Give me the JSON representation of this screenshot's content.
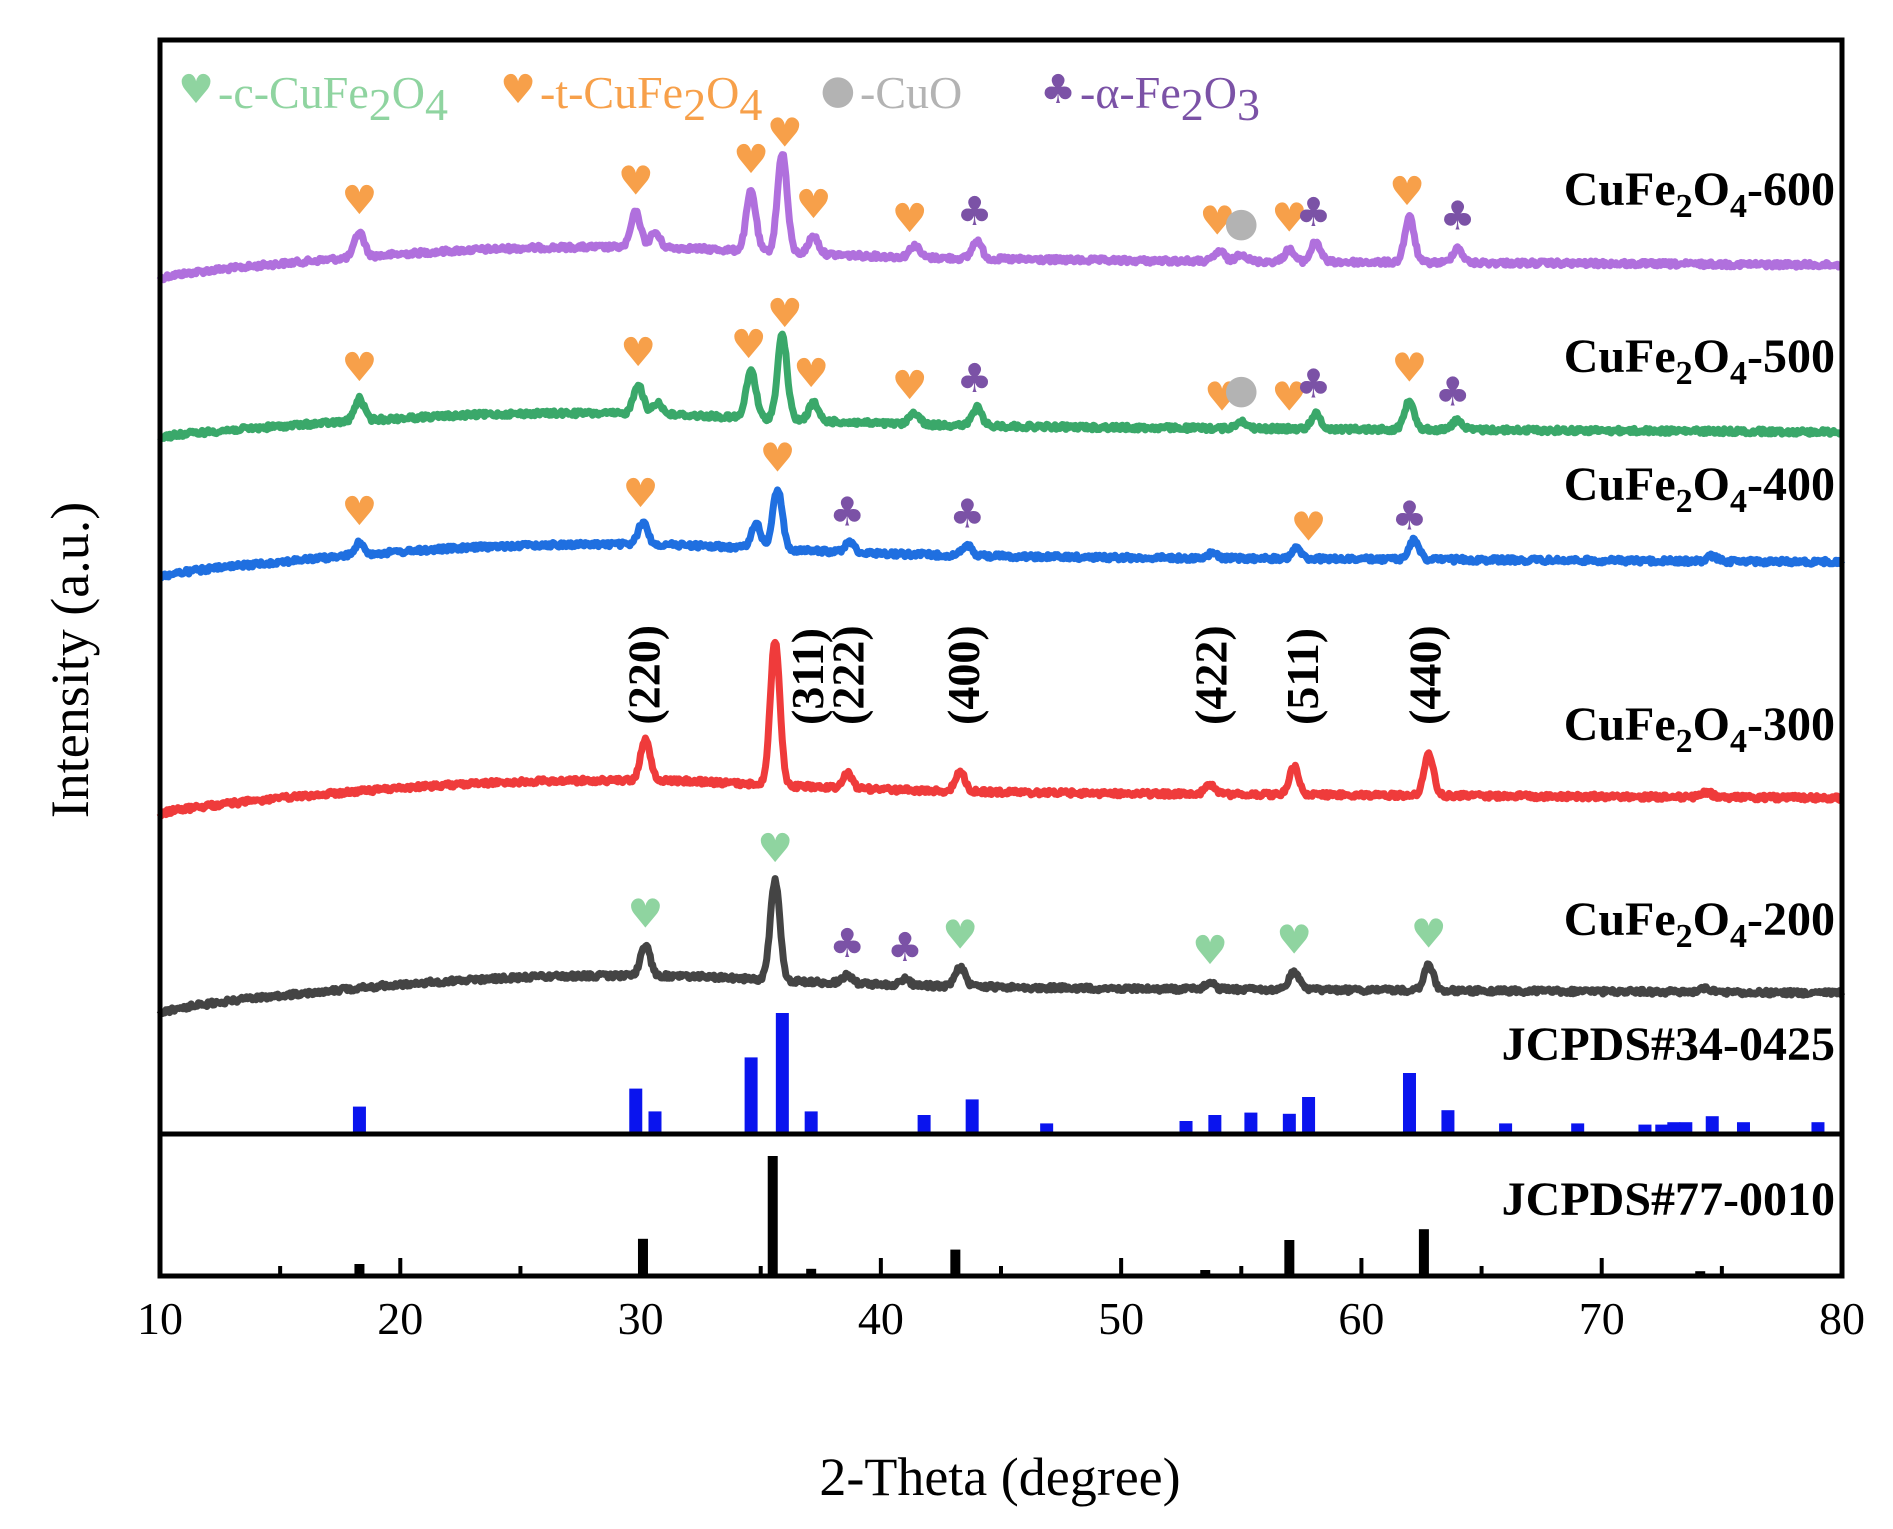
{
  "chart_data": {
    "type": "line",
    "xlabel": "2-Theta (degree)",
    "ylabel": "Intensity (a.u.)",
    "xlim": [
      10,
      80
    ],
    "x_ticks": [
      "10",
      "20",
      "30",
      "40",
      "50",
      "60",
      "70",
      "80"
    ],
    "legend": [
      {
        "symbol": "♥",
        "prefix": "-c-CuFe",
        "sub1": "2",
        "mid": "O",
        "sub2": "4",
        "color": "#8fd4a0"
      },
      {
        "symbol": "♥",
        "prefix": "-t-CuFe",
        "sub1": "2",
        "mid": "O",
        "sub2": "4",
        "color": "#f7a04a"
      },
      {
        "symbol": "●",
        "prefix": "-CuO",
        "sub1": "",
        "mid": "",
        "sub2": "",
        "color": "#b3b3b3"
      },
      {
        "symbol": "♣",
        "prefix": "-α-Fe",
        "sub1": "2",
        "mid": "O",
        "sub2": "3",
        "color": "#7b52a6"
      }
    ],
    "series": [
      {
        "name": "CuFe2O4-600",
        "label_main": "CuFe",
        "label_sub1": "2",
        "label_mid": "O",
        "label_sub2": "4",
        "label_suffix": "-600",
        "color": "#b070dd",
        "peaks": [
          {
            "x": 18.3,
            "h": 0.25
          },
          {
            "x": 29.8,
            "h": 0.35
          },
          {
            "x": 30.6,
            "h": 0.15
          },
          {
            "x": 34.6,
            "h": 0.6
          },
          {
            "x": 35.9,
            "h": 1.0
          },
          {
            "x": 37.2,
            "h": 0.18
          },
          {
            "x": 41.4,
            "h": 0.12
          },
          {
            "x": 44.0,
            "h": 0.18
          },
          {
            "x": 54.1,
            "h": 0.1
          },
          {
            "x": 55.0,
            "h": 0.08
          },
          {
            "x": 57.0,
            "h": 0.12
          },
          {
            "x": 58.1,
            "h": 0.2
          },
          {
            "x": 62.0,
            "h": 0.45
          },
          {
            "x": 64.0,
            "h": 0.15
          }
        ],
        "markers": [
          {
            "x": 18.3,
            "sym": "♥",
            "color": "#f7a04a"
          },
          {
            "x": 29.8,
            "sym": "♥",
            "color": "#f7a04a"
          },
          {
            "x": 34.6,
            "sym": "♥",
            "color": "#f7a04a"
          },
          {
            "x": 36.0,
            "sym": "♥",
            "color": "#f7a04a"
          },
          {
            "x": 37.2,
            "sym": "♥",
            "color": "#f7a04a"
          },
          {
            "x": 41.2,
            "sym": "♥",
            "color": "#f7a04a"
          },
          {
            "x": 43.9,
            "sym": "♣",
            "color": "#7b52a6"
          },
          {
            "x": 54.0,
            "sym": "♥",
            "color": "#f7a04a"
          },
          {
            "x": 55.0,
            "sym": "●",
            "color": "#b3b3b3"
          },
          {
            "x": 57.0,
            "sym": "♥",
            "color": "#f7a04a"
          },
          {
            "x": 58.0,
            "sym": "♣",
            "color": "#7b52a6"
          },
          {
            "x": 61.9,
            "sym": "♥",
            "color": "#f7a04a"
          },
          {
            "x": 64.0,
            "sym": "♣",
            "color": "#7b52a6"
          }
        ]
      },
      {
        "name": "CuFe2O4-500",
        "label_main": "CuFe",
        "label_sub1": "2",
        "label_mid": "O",
        "label_sub2": "4",
        "label_suffix": "-500",
        "color": "#3aa86a",
        "peaks": [
          {
            "x": 18.3,
            "h": 0.22
          },
          {
            "x": 29.9,
            "h": 0.3
          },
          {
            "x": 30.7,
            "h": 0.12
          },
          {
            "x": 34.6,
            "h": 0.48
          },
          {
            "x": 35.9,
            "h": 0.85
          },
          {
            "x": 37.2,
            "h": 0.18
          },
          {
            "x": 41.4,
            "h": 0.12
          },
          {
            "x": 44.0,
            "h": 0.18
          },
          {
            "x": 55.0,
            "h": 0.08
          },
          {
            "x": 58.1,
            "h": 0.15
          },
          {
            "x": 62.0,
            "h": 0.3
          },
          {
            "x": 64.0,
            "h": 0.1
          }
        ],
        "markers": [
          {
            "x": 18.3,
            "sym": "♥",
            "color": "#f7a04a"
          },
          {
            "x": 29.9,
            "sym": "♥",
            "color": "#f7a04a"
          },
          {
            "x": 34.5,
            "sym": "♥",
            "color": "#f7a04a"
          },
          {
            "x": 36.0,
            "sym": "♥",
            "color": "#f7a04a"
          },
          {
            "x": 37.1,
            "sym": "♥",
            "color": "#f7a04a"
          },
          {
            "x": 41.2,
            "sym": "♥",
            "color": "#f7a04a"
          },
          {
            "x": 43.9,
            "sym": "♣",
            "color": "#7b52a6"
          },
          {
            "x": 54.2,
            "sym": "♥",
            "color": "#f7a04a"
          },
          {
            "x": 55.0,
            "sym": "●",
            "color": "#b3b3b3"
          },
          {
            "x": 57.0,
            "sym": "♥",
            "color": "#f7a04a"
          },
          {
            "x": 58.0,
            "sym": "♣",
            "color": "#7b52a6"
          },
          {
            "x": 62.0,
            "sym": "♥",
            "color": "#f7a04a"
          },
          {
            "x": 63.8,
            "sym": "♣",
            "color": "#7b52a6"
          }
        ]
      },
      {
        "name": "CuFe2O4-400",
        "label_main": "CuFe",
        "label_sub1": "2",
        "label_mid": "O",
        "label_sub2": "4",
        "label_suffix": "-400",
        "color": "#1f6fe0",
        "peaks": [
          {
            "x": 18.3,
            "h": 0.12
          },
          {
            "x": 30.1,
            "h": 0.22
          },
          {
            "x": 34.8,
            "h": 0.25
          },
          {
            "x": 35.7,
            "h": 0.6
          },
          {
            "x": 38.7,
            "h": 0.1
          },
          {
            "x": 43.6,
            "h": 0.1
          },
          {
            "x": 53.8,
            "h": 0.05
          },
          {
            "x": 57.3,
            "h": 0.1
          },
          {
            "x": 62.2,
            "h": 0.2
          },
          {
            "x": 74.6,
            "h": 0.05
          }
        ],
        "markers": [
          {
            "x": 18.3,
            "sym": "♥",
            "color": "#f7a04a"
          },
          {
            "x": 30.0,
            "sym": "♥",
            "color": "#f7a04a"
          },
          {
            "x": 35.7,
            "sym": "♥",
            "color": "#f7a04a"
          },
          {
            "x": 38.6,
            "sym": "♣",
            "color": "#7b52a6"
          },
          {
            "x": 43.6,
            "sym": "♣",
            "color": "#7b52a6"
          },
          {
            "x": 57.8,
            "sym": "♥",
            "color": "#f7a04a"
          },
          {
            "x": 62.0,
            "sym": "♣",
            "color": "#7b52a6"
          }
        ]
      },
      {
        "name": "CuFe2O4-300",
        "label_main": "CuFe",
        "label_sub1": "2",
        "label_mid": "O",
        "label_sub2": "4",
        "label_suffix": "-300",
        "color": "#ef3b3b",
        "peaks": [
          {
            "x": 30.2,
            "h": 0.42
          },
          {
            "x": 35.6,
            "h": 1.45
          },
          {
            "x": 38.6,
            "h": 0.15
          },
          {
            "x": 43.3,
            "h": 0.2
          },
          {
            "x": 53.7,
            "h": 0.1
          },
          {
            "x": 57.2,
            "h": 0.28
          },
          {
            "x": 62.8,
            "h": 0.42
          },
          {
            "x": 74.4,
            "h": 0.05
          }
        ],
        "markers": [],
        "hkl": [
          {
            "x": 30.2,
            "label": "(220)"
          },
          {
            "x": 37.0,
            "label": "(311)"
          },
          {
            "x": 38.7,
            "label": "(222)"
          },
          {
            "x": 43.5,
            "label": "(400)"
          },
          {
            "x": 53.8,
            "label": "(422)"
          },
          {
            "x": 57.6,
            "label": "(511)"
          },
          {
            "x": 62.7,
            "label": "(440)"
          }
        ]
      },
      {
        "name": "CuFe2O4-200",
        "label_main": "CuFe",
        "label_sub1": "2",
        "label_mid": "O",
        "label_sub2": "4",
        "label_suffix": "-200",
        "color": "#444444",
        "peaks": [
          {
            "x": 30.2,
            "h": 0.3
          },
          {
            "x": 35.6,
            "h": 1.0
          },
          {
            "x": 38.6,
            "h": 0.08
          },
          {
            "x": 41.0,
            "h": 0.06
          },
          {
            "x": 43.3,
            "h": 0.2
          },
          {
            "x": 53.7,
            "h": 0.07
          },
          {
            "x": 57.2,
            "h": 0.18
          },
          {
            "x": 62.8,
            "h": 0.25
          },
          {
            "x": 74.3,
            "h": 0.04
          }
        ],
        "markers": [
          {
            "x": 30.2,
            "sym": "♥",
            "color": "#8fd4a0"
          },
          {
            "x": 35.6,
            "sym": "♥",
            "color": "#8fd4a0"
          },
          {
            "x": 38.6,
            "sym": "♣",
            "color": "#7b52a6"
          },
          {
            "x": 41.0,
            "sym": "♣",
            "color": "#7b52a6"
          },
          {
            "x": 43.3,
            "sym": "♥",
            "color": "#8fd4a0"
          },
          {
            "x": 53.7,
            "sym": "♥",
            "color": "#8fd4a0"
          },
          {
            "x": 57.2,
            "sym": "♥",
            "color": "#8fd4a0"
          },
          {
            "x": 62.8,
            "sym": "♥",
            "color": "#8fd4a0"
          }
        ]
      }
    ],
    "reference_patterns": [
      {
        "name": "JCPDS#34-0425",
        "color": "#0a14ee",
        "sticks": [
          {
            "x": 18.3,
            "i": 22
          },
          {
            "x": 29.8,
            "i": 37
          },
          {
            "x": 30.6,
            "i": 18
          },
          {
            "x": 34.6,
            "i": 63
          },
          {
            "x": 35.9,
            "i": 100
          },
          {
            "x": 37.1,
            "i": 18
          },
          {
            "x": 41.8,
            "i": 15
          },
          {
            "x": 43.8,
            "i": 28
          },
          {
            "x": 46.9,
            "i": 8
          },
          {
            "x": 52.7,
            "i": 10
          },
          {
            "x": 53.9,
            "i": 15
          },
          {
            "x": 55.4,
            "i": 17
          },
          {
            "x": 57.0,
            "i": 16
          },
          {
            "x": 57.8,
            "i": 30
          },
          {
            "x": 62.0,
            "i": 50
          },
          {
            "x": 63.6,
            "i": 19
          },
          {
            "x": 66.0,
            "i": 8
          },
          {
            "x": 69.0,
            "i": 8
          },
          {
            "x": 71.8,
            "i": 7
          },
          {
            "x": 72.5,
            "i": 7
          },
          {
            "x": 73.0,
            "i": 9
          },
          {
            "x": 73.5,
            "i": 9
          },
          {
            "x": 74.6,
            "i": 14
          },
          {
            "x": 75.9,
            "i": 9
          },
          {
            "x": 79.0,
            "i": 9
          }
        ]
      },
      {
        "name": "JCPDS#77-0010",
        "color": "#000000",
        "sticks": [
          {
            "x": 18.3,
            "i": 10
          },
          {
            "x": 30.1,
            "i": 31
          },
          {
            "x": 35.5,
            "i": 100
          },
          {
            "x": 37.1,
            "i": 6
          },
          {
            "x": 43.1,
            "i": 22
          },
          {
            "x": 53.5,
            "i": 5
          },
          {
            "x": 57.0,
            "i": 30
          },
          {
            "x": 62.6,
            "i": 39
          },
          {
            "x": 74.1,
            "i": 4
          }
        ]
      }
    ]
  }
}
